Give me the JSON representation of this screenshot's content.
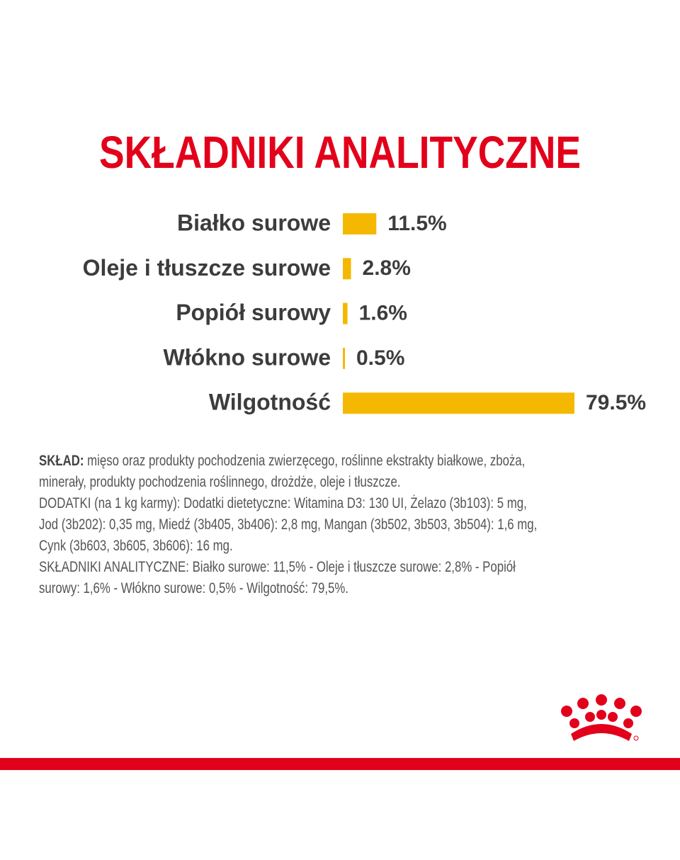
{
  "chart_data": {
    "type": "bar",
    "orientation": "horizontal",
    "title": "SKŁADNIKI ANALITYCZNE",
    "categories": [
      "Białko surowe",
      "Oleje i tłuszcze surowe",
      "Popiół surowy",
      "Włókno surowe",
      "Wilgotność"
    ],
    "values": [
      11.5,
      2.8,
      1.6,
      0.5,
      79.5
    ],
    "value_labels": [
      "11.5%",
      "2.8%",
      "1.6%",
      "0.5%",
      "79.5%"
    ],
    "color": "#f5b800"
  },
  "composition": {
    "label": "SKŁAD:",
    "lines": [
      "mięso oraz produkty pochodzenia zwierzęcego, roślinne ekstrakty białkowe, zboża,",
      "minerały, produkty pochodzenia roślinnego, drożdże, oleje i tłuszcze.",
      "DODATKI (na 1 kg karmy): Dodatki dietetyczne: Witamina D3: 130 UI, Żelazo (3b103): 5 mg,",
      "Jod (3b202): 0,35 mg, Miedź (3b405, 3b406): 2,8 mg, Mangan (3b502, 3b503, 3b504): 1,6 mg,",
      "Cynk (3b603, 3b605, 3b606): 16 mg.",
      "SKŁADNIKI ANALITYCZNE: Białko surowe: 11,5% - Oleje i tłuszcze surowe: 2,8% - Popiół",
      "surowy: 1,6% - Włókno surowe: 0,5% - Wilgotność: 79,5%."
    ]
  }
}
